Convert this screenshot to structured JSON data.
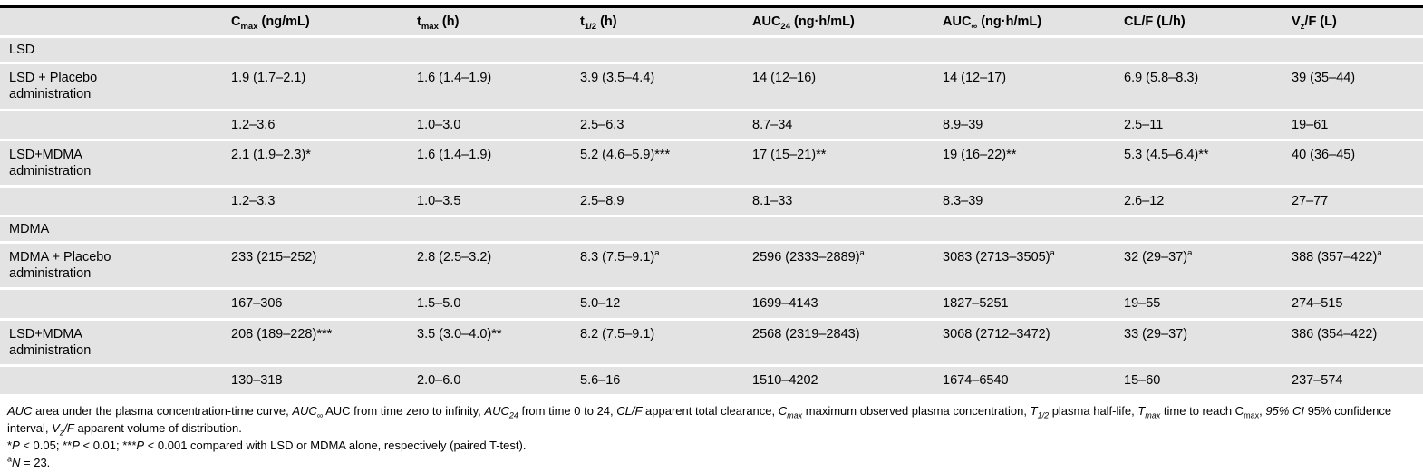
{
  "colors": {
    "row_background": "#e3e3e3",
    "row_separator": "#ffffff",
    "top_rule": "#000000",
    "text": "#000000"
  },
  "table": {
    "columns": [
      {
        "pre": "",
        "post": ""
      },
      {
        "pre": "C",
        "sub": "max",
        "post": " (ng/mL)"
      },
      {
        "pre": "t",
        "sub": "max",
        "post": " (h)"
      },
      {
        "pre": "t",
        "sub": "1/2",
        "post": " (h)"
      },
      {
        "pre": "AUC",
        "sub": "24",
        "post": " (ng·h/mL)"
      },
      {
        "pre": "AUC",
        "sub": "∞",
        "post": " (ng·h/mL)"
      },
      {
        "pre": "CL/F",
        "post": " (L/h)"
      },
      {
        "pre": "V",
        "sub": "z",
        "post": "/F (L)"
      }
    ],
    "rows": [
      {
        "type": "section",
        "label": "LSD"
      },
      {
        "type": "data",
        "label": "LSD + Placebo administration",
        "cells": [
          {
            "v": "1.9 (1.7–2.1)"
          },
          {
            "v": "1.6 (1.4–1.9)"
          },
          {
            "v": "3.9 (3.5–4.4)"
          },
          {
            "v": "14 (12–16)"
          },
          {
            "v": "14 (12–17)"
          },
          {
            "v": "6.9 (5.8–8.3)"
          },
          {
            "v": "39 (35–44)"
          }
        ]
      },
      {
        "type": "range",
        "label": "",
        "cells": [
          {
            "v": "1.2–3.6"
          },
          {
            "v": "1.0–3.0"
          },
          {
            "v": "2.5–6.3"
          },
          {
            "v": "8.7–34"
          },
          {
            "v": "8.9–39"
          },
          {
            "v": "2.5–11"
          },
          {
            "v": "19–61"
          }
        ]
      },
      {
        "type": "data",
        "label": "LSD+MDMA administration",
        "cells": [
          {
            "v": "2.1 (1.9–2.3)*"
          },
          {
            "v": "1.6 (1.4–1.9)"
          },
          {
            "v": "5.2 (4.6–5.9)***"
          },
          {
            "v": "17 (15–21)**"
          },
          {
            "v": "19 (16–22)**"
          },
          {
            "v": "5.3 (4.5–6.4)**"
          },
          {
            "v": "40 (36–45)"
          }
        ]
      },
      {
        "type": "range",
        "label": "",
        "cells": [
          {
            "v": "1.2–3.3"
          },
          {
            "v": "1.0–3.5"
          },
          {
            "v": "2.5–8.9"
          },
          {
            "v": "8.1–33"
          },
          {
            "v": "8.3–39"
          },
          {
            "v": "2.6–12"
          },
          {
            "v": "27–77"
          }
        ]
      },
      {
        "type": "section",
        "label": "MDMA"
      },
      {
        "type": "data",
        "label": "MDMA + Placebo administration",
        "cells": [
          {
            "v": "233 (215–252)"
          },
          {
            "v": "2.8 (2.5–3.2)"
          },
          {
            "v": "8.3 (7.5–9.1)",
            "sup": "a"
          },
          {
            "v": "2596 (2333–2889)",
            "sup": "a"
          },
          {
            "v": "3083 (2713–3505)",
            "sup": "a"
          },
          {
            "v": "32 (29–37)",
            "sup": "a"
          },
          {
            "v": "388 (357–422)",
            "sup": "a"
          }
        ]
      },
      {
        "type": "range",
        "label": "",
        "cells": [
          {
            "v": "167–306"
          },
          {
            "v": "1.5–5.0"
          },
          {
            "v": "5.0–12"
          },
          {
            "v": "1699–4143"
          },
          {
            "v": "1827–5251"
          },
          {
            "v": "19–55"
          },
          {
            "v": "274–515"
          }
        ]
      },
      {
        "type": "data",
        "label": "LSD+MDMA administration",
        "cells": [
          {
            "v": "208 (189–228)***"
          },
          {
            "v": "3.5 (3.0–4.0)**"
          },
          {
            "v": "8.2 (7.5–9.1)"
          },
          {
            "v": "2568 (2319–2843)"
          },
          {
            "v": "3068 (2712–3472)"
          },
          {
            "v": "33 (29–37)"
          },
          {
            "v": "386 (354–422)"
          }
        ]
      },
      {
        "type": "range",
        "label": "",
        "cells": [
          {
            "v": "130–318"
          },
          {
            "v": "2.0–6.0"
          },
          {
            "v": "5.6–16"
          },
          {
            "v": "1510–4202"
          },
          {
            "v": "1674–6540"
          },
          {
            "v": "15–60"
          },
          {
            "v": "237–574"
          }
        ]
      }
    ]
  },
  "footnotes": {
    "abbreviations": [
      {
        "t": "AUC",
        "it": true
      },
      {
        "t": " area under the plasma concentration-time curve, "
      },
      {
        "t": "AUC",
        "it": true
      },
      {
        "t": "∞",
        "it": true,
        "sub": true
      },
      {
        "t": " AUC from time zero to infinity, "
      },
      {
        "t": "AUC",
        "it": true
      },
      {
        "t": "24",
        "it": true,
        "sub": true
      },
      {
        "t": " from time 0 to 24, "
      },
      {
        "t": "CL/F",
        "it": true
      },
      {
        "t": " apparent total clearance, "
      },
      {
        "t": "C",
        "it": true
      },
      {
        "t": "max",
        "it": true,
        "sub": true
      },
      {
        "t": " maximum observed plasma concentration, "
      },
      {
        "t": "T",
        "it": true
      },
      {
        "t": "1/2",
        "it": true,
        "sub": true
      },
      {
        "t": " plasma half-life, "
      },
      {
        "t": "T",
        "it": true
      },
      {
        "t": "max",
        "it": true,
        "sub": true
      },
      {
        "t": " time to reach C"
      },
      {
        "t": "max",
        "sub": true
      },
      {
        "t": ", "
      },
      {
        "t": "95% CI",
        "it": true
      },
      {
        "t": " 95% confidence interval, "
      },
      {
        "t": "V",
        "it": true
      },
      {
        "t": "z",
        "it": true,
        "sub": true
      },
      {
        "t": "/F",
        "it": true
      },
      {
        "t": " apparent volume of distribution."
      }
    ],
    "significance": [
      {
        "t": "*"
      },
      {
        "t": "P",
        "it": true
      },
      {
        "t": " < 0.05; **"
      },
      {
        "t": "P",
        "it": true
      },
      {
        "t": " < 0.01; ***"
      },
      {
        "t": "P",
        "it": true
      },
      {
        "t": " < 0.001 compared with LSD or MDMA alone, respectively (paired T-test)."
      }
    ],
    "sample_size": [
      {
        "t": "a",
        "sup": true
      },
      {
        "t": "N",
        "it": true
      },
      {
        "t": " = 23."
      }
    ]
  }
}
